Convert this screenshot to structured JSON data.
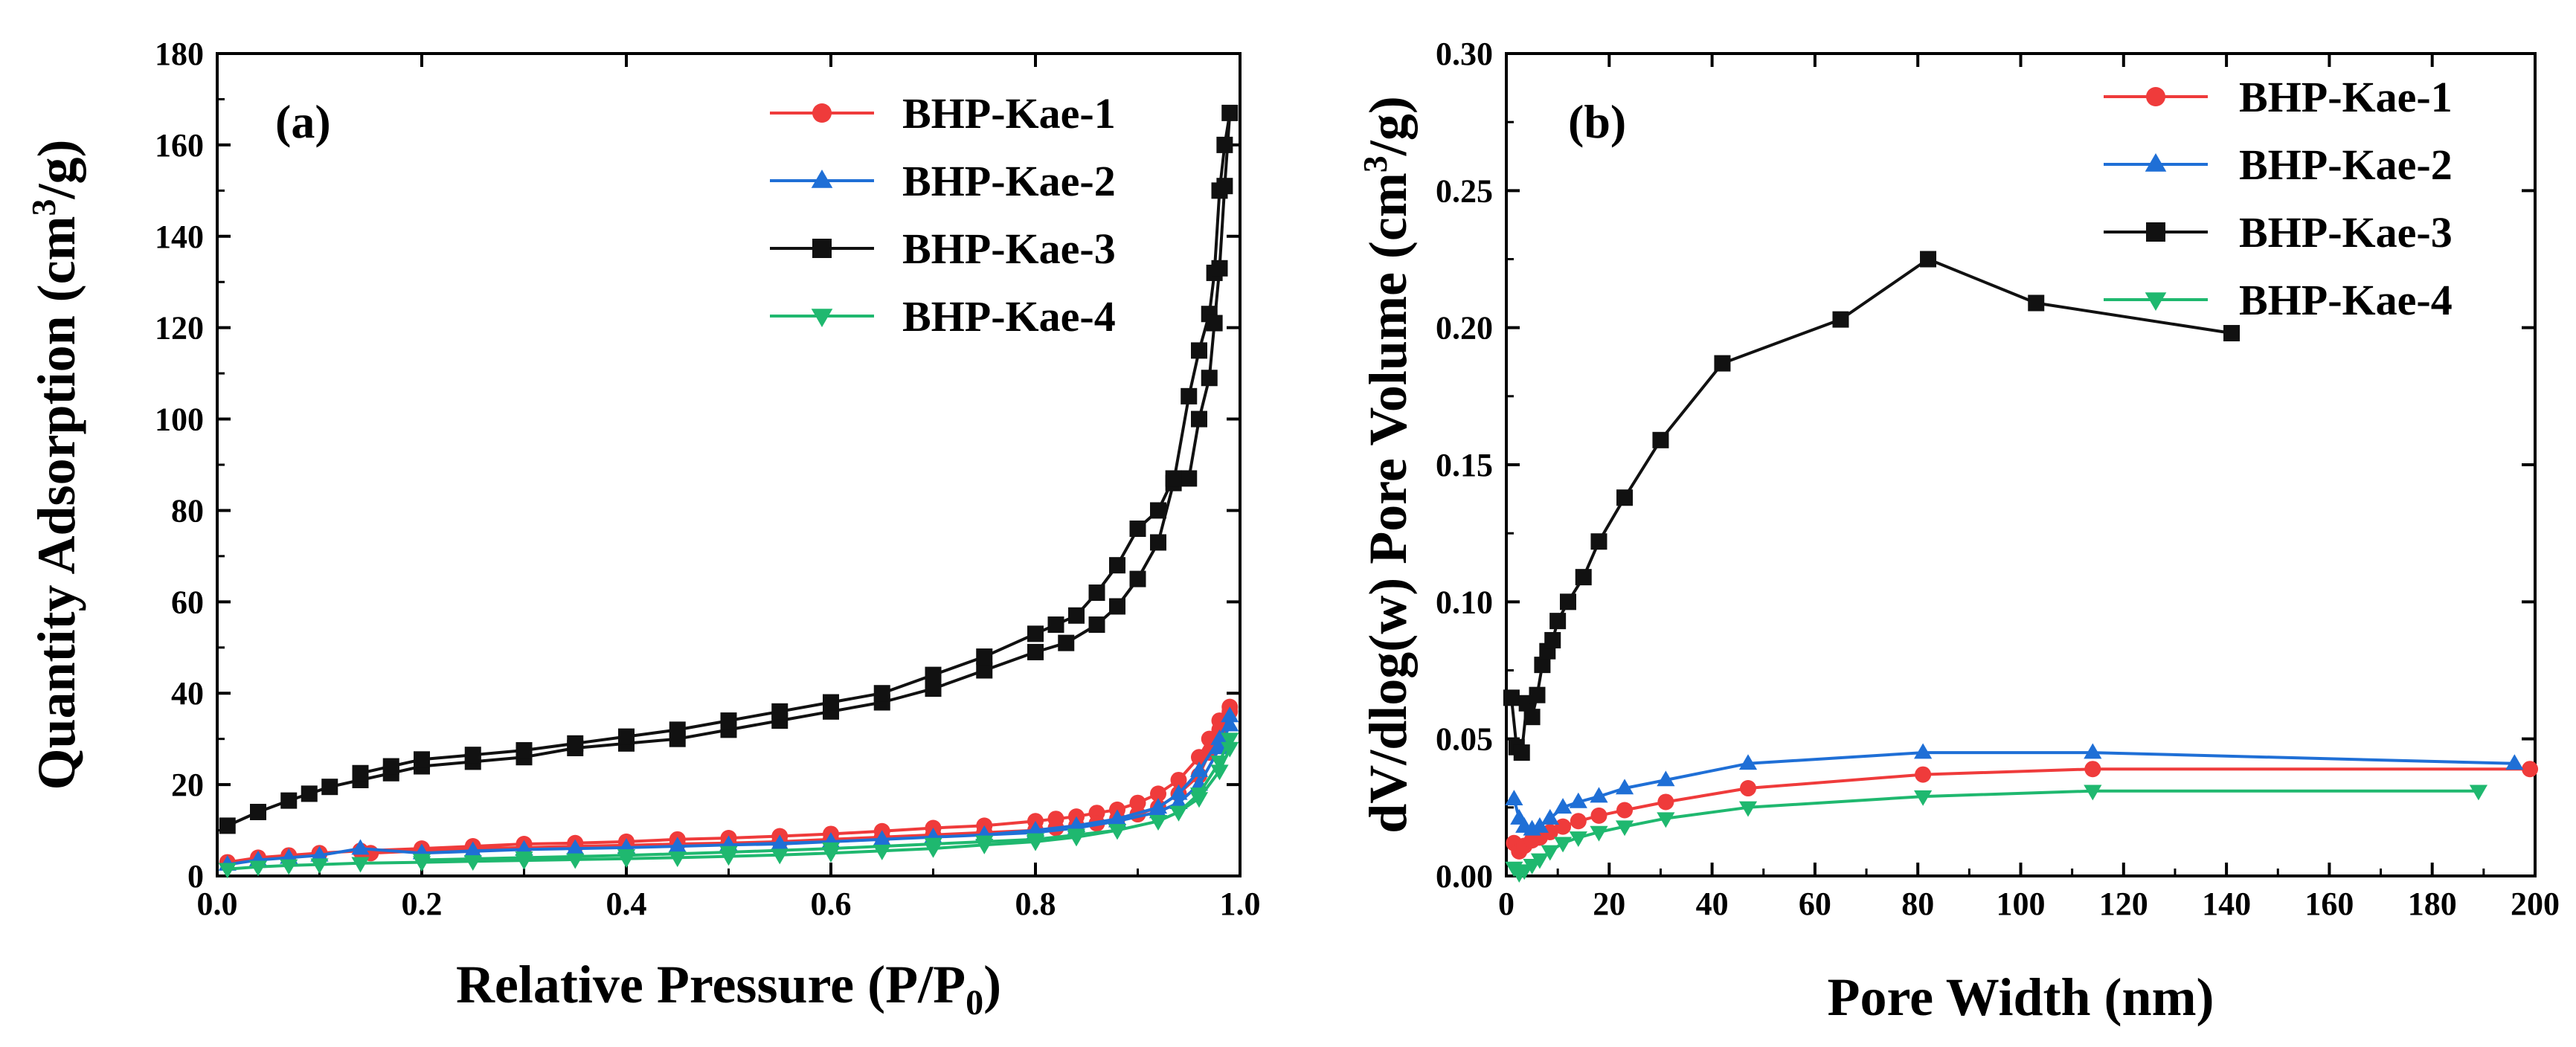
{
  "chart_data": [
    {
      "type": "line",
      "panel_label": "(a)",
      "xlabel_main": "Relative Pressure (P/P",
      "xlabel_sub": "0",
      "xlabel_close": ")",
      "ylabel_main": "Quantity Adsorption (cm",
      "ylabel_sup": "3",
      "ylabel_close": "/g)",
      "xlim": [
        0.0,
        1.0
      ],
      "ylim": [
        0,
        180
      ],
      "xticks": [
        "0.0",
        "0.2",
        "0.4",
        "0.6",
        "0.8",
        "1.0"
      ],
      "yticks": [
        "0",
        "20",
        "40",
        "60",
        "80",
        "100",
        "120",
        "140",
        "160",
        "180"
      ],
      "legend_position": "top-right",
      "series": [
        {
          "name": "BHP-Kae-1",
          "color": "#ef3b3b",
          "marker": "circle",
          "x": [
            0.01,
            0.04,
            0.07,
            0.1,
            0.14,
            0.2,
            0.25,
            0.3,
            0.35,
            0.4,
            0.45,
            0.5,
            0.55,
            0.6,
            0.65,
            0.7,
            0.75,
            0.8,
            0.82,
            0.84,
            0.86,
            0.88,
            0.9,
            0.92,
            0.94,
            0.96,
            0.97,
            0.98,
            0.99,
            0.99,
            0.98,
            0.97,
            0.96,
            0.94,
            0.92,
            0.9,
            0.88,
            0.86,
            0.84,
            0.82,
            0.8,
            0.75,
            0.7,
            0.65,
            0.6,
            0.55,
            0.5,
            0.45,
            0.4,
            0.35,
            0.3,
            0.25,
            0.2,
            0.15
          ],
          "y": [
            3,
            4,
            4.5,
            5,
            5.5,
            6,
            6.5,
            7,
            7.2,
            7.5,
            8,
            8.3,
            8.7,
            9.2,
            9.8,
            10.5,
            11,
            12,
            12.5,
            13,
            13.8,
            14.5,
            16,
            18,
            21,
            26,
            30,
            34,
            37,
            36,
            32,
            27,
            22,
            18,
            15,
            13.5,
            12.5,
            11.5,
            11,
            10.5,
            10,
            9.5,
            9,
            8.5,
            8,
            7.5,
            7.2,
            7,
            6.7,
            6.5,
            6.2,
            6,
            5.5,
            5
          ]
        },
        {
          "name": "BHP-Kae-2",
          "color": "#1f6fd6",
          "marker": "triangle-up",
          "x": [
            0.01,
            0.04,
            0.07,
            0.1,
            0.14,
            0.2,
            0.25,
            0.3,
            0.35,
            0.4,
            0.45,
            0.5,
            0.55,
            0.6,
            0.65,
            0.7,
            0.75,
            0.8,
            0.84,
            0.88,
            0.92,
            0.94,
            0.96,
            0.98,
            0.99,
            0.99,
            0.98,
            0.96,
            0.94,
            0.92,
            0.88,
            0.84,
            0.8,
            0.75,
            0.7,
            0.6,
            0.5,
            0.4,
            0.3,
            0.2
          ],
          "y": [
            2.5,
            3.5,
            4,
            4.5,
            6,
            5,
            5.5,
            5.8,
            6,
            6.2,
            6.5,
            6.8,
            7,
            7.5,
            8,
            8.5,
            9,
            10,
            11,
            12.5,
            15,
            18,
            23,
            30,
            35,
            33,
            28,
            20,
            16,
            14,
            12,
            10.5,
            9.5,
            9,
            8.5,
            7.5,
            6.8,
            6.2,
            5.8,
            5
          ]
        },
        {
          "name": "BHP-Kae-3",
          "color": "#111111",
          "marker": "square",
          "x": [
            0.01,
            0.04,
            0.07,
            0.09,
            0.11,
            0.14,
            0.17,
            0.2,
            0.25,
            0.3,
            0.35,
            0.4,
            0.45,
            0.5,
            0.55,
            0.6,
            0.65,
            0.7,
            0.75,
            0.8,
            0.83,
            0.86,
            0.88,
            0.9,
            0.92,
            0.935,
            0.95,
            0.96,
            0.97,
            0.975,
            0.98,
            0.985,
            0.99,
            0.985,
            0.98,
            0.975,
            0.97,
            0.96,
            0.95,
            0.935,
            0.92,
            0.9,
            0.88,
            0.86,
            0.84,
            0.82,
            0.8,
            0.75,
            0.7,
            0.65,
            0.6,
            0.55,
            0.5,
            0.45,
            0.4,
            0.35,
            0.3,
            0.25,
            0.2,
            0.17,
            0.14
          ],
          "y": [
            11,
            14,
            16.5,
            18,
            19.5,
            21,
            22.5,
            24,
            25,
            26,
            28,
            29,
            30,
            32,
            34,
            36,
            38,
            41,
            45,
            49,
            51,
            55,
            59,
            65,
            73,
            86,
            105,
            115,
            123,
            132,
            150,
            160,
            167,
            151,
            133,
            121,
            109,
            100,
            87,
            87,
            80,
            76,
            68,
            62,
            57,
            55,
            53,
            48,
            44,
            40,
            38,
            36,
            34,
            32,
            30.5,
            29,
            27.5,
            26.5,
            25.5,
            24,
            22.5
          ]
        },
        {
          "name": "BHP-Kae-4",
          "color": "#1fb86f",
          "marker": "triangle-down",
          "x": [
            0.01,
            0.04,
            0.07,
            0.1,
            0.14,
            0.2,
            0.25,
            0.3,
            0.35,
            0.4,
            0.45,
            0.5,
            0.55,
            0.6,
            0.65,
            0.7,
            0.75,
            0.8,
            0.84,
            0.88,
            0.92,
            0.94,
            0.96,
            0.98,
            0.99,
            0.99,
            0.98,
            0.96,
            0.94,
            0.92,
            0.88,
            0.84,
            0.8,
            0.75,
            0.7,
            0.6,
            0.5,
            0.4,
            0.3,
            0.2
          ],
          "y": [
            1.5,
            2,
            2.3,
            2.5,
            2.8,
            3,
            3.2,
            3.4,
            3.6,
            3.8,
            4,
            4.3,
            4.6,
            5,
            5.5,
            6,
            6.8,
            7.5,
            8.5,
            10,
            12,
            14,
            18,
            25,
            30,
            28,
            23,
            17,
            14,
            12,
            10,
            9,
            8,
            7.5,
            7,
            6,
            5.2,
            4.5,
            4,
            3.5
          ]
        }
      ]
    },
    {
      "type": "line",
      "panel_label": "(b)",
      "xlabel_main": "Pore Width (nm)",
      "ylabel_main": "dV/dlog(w) Pore Volume (cm",
      "ylabel_sup": "3",
      "ylabel_close": "/g)",
      "xlim": [
        0,
        200
      ],
      "ylim": [
        0.0,
        0.3
      ],
      "xticks": [
        "0",
        "20",
        "40",
        "60",
        "80",
        "100",
        "120",
        "140",
        "160",
        "180",
        "200"
      ],
      "yticks": [
        "0.00",
        "0.05",
        "0.10",
        "0.15",
        "0.20",
        "0.25",
        "0.30"
      ],
      "legend_position": "top-right",
      "series": [
        {
          "name": "BHP-Kae-1",
          "color": "#ef3b3b",
          "marker": "circle",
          "x": [
            1.5,
            2.5,
            3.5,
            5,
            6.5,
            8.5,
            11,
            14,
            18,
            23,
            31,
            47,
            81,
            114,
            199
          ],
          "y": [
            0.012,
            0.009,
            0.011,
            0.013,
            0.014,
            0.016,
            0.018,
            0.02,
            0.022,
            0.024,
            0.027,
            0.032,
            0.037,
            0.039,
            0.039
          ]
        },
        {
          "name": "BHP-Kae-2",
          "color": "#1f6fd6",
          "marker": "triangle-up",
          "x": [
            1.5,
            2.5,
            3.5,
            5,
            6.5,
            8.5,
            11,
            14,
            18,
            23,
            31,
            47,
            81,
            114,
            196
          ],
          "y": [
            0.028,
            0.021,
            0.018,
            0.017,
            0.018,
            0.021,
            0.025,
            0.027,
            0.029,
            0.032,
            0.035,
            0.041,
            0.045,
            0.045,
            0.041
          ]
        },
        {
          "name": "BHP-Kae-3",
          "color": "#111111",
          "marker": "square",
          "x": [
            1,
            2,
            3,
            4,
            5,
            6,
            7,
            8,
            9,
            10,
            12,
            15,
            18,
            23,
            30,
            42,
            65,
            82,
            103,
            141
          ],
          "y": [
            0.065,
            0.047,
            0.045,
            0.063,
            0.058,
            0.066,
            0.077,
            0.082,
            0.086,
            0.093,
            0.1,
            0.109,
            0.122,
            0.138,
            0.159,
            0.187,
            0.203,
            0.225,
            0.209,
            0.198
          ]
        },
        {
          "name": "BHP-Kae-4",
          "color": "#1fb86f",
          "marker": "triangle-down",
          "x": [
            1.5,
            2.5,
            3.5,
            5,
            6.5,
            8.5,
            11,
            14,
            18,
            23,
            31,
            47,
            81,
            114,
            189
          ],
          "y": [
            0.003,
            0.001,
            0.002,
            0.004,
            0.006,
            0.009,
            0.012,
            0.014,
            0.016,
            0.018,
            0.021,
            0.025,
            0.029,
            0.031,
            0.031
          ]
        }
      ]
    }
  ]
}
